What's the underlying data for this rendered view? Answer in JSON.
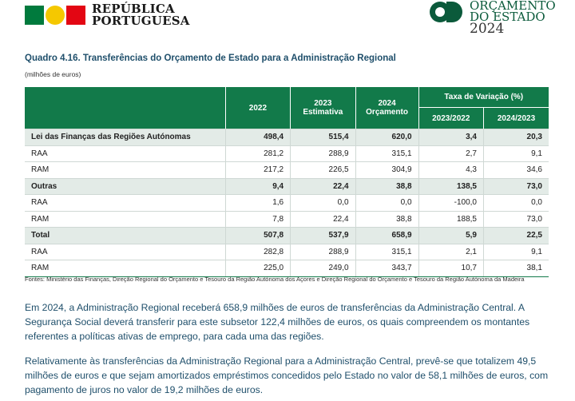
{
  "header": {
    "republica_line1": "REPÚBLICA",
    "republica_line2": "PORTUGUESA",
    "orcamento_line1": "ORÇAMENTO",
    "orcamento_line2": "DO ESTADO",
    "orcamento_year": "2024"
  },
  "table_title": "Quadro 4.16. Transferências do Orçamento de Estado para a Administração Regional",
  "units": "(milhões de euros)",
  "columns": {
    "c2022": "2022",
    "c2023": "2023",
    "c2023_sub": "Estimativa",
    "c2024": "2024",
    "c2024_sub": "Orçamento",
    "taxa": "Taxa de Variação (%)",
    "taxa_a": "2023/2022",
    "taxa_b": "2024/2023"
  },
  "rows": [
    {
      "label": "Lei das Finanças das Regiões Autónomas",
      "v2022": "498,4",
      "v2023": "515,4",
      "v2024": "620,0",
      "t1": "3,4",
      "t2": "20,3",
      "bold": true
    },
    {
      "label": "RAA",
      "v2022": "281,2",
      "v2023": "288,9",
      "v2024": "315,1",
      "t1": "2,7",
      "t2": "9,1",
      "bold": false
    },
    {
      "label": "RAM",
      "v2022": "217,2",
      "v2023": "226,5",
      "v2024": "304,9",
      "t1": "4,3",
      "t2": "34,6",
      "bold": false
    },
    {
      "label": "Outras",
      "v2022": "9,4",
      "v2023": "22,4",
      "v2024": "38,8",
      "t1": "138,5",
      "t2": "73,0",
      "bold": true
    },
    {
      "label": "RAA",
      "v2022": "1,6",
      "v2023": "0,0",
      "v2024": "0,0",
      "t1": "-100,0",
      "t2": "0,0",
      "bold": false
    },
    {
      "label": "RAM",
      "v2022": "7,8",
      "v2023": "22,4",
      "v2024": "38,8",
      "t1": "188,5",
      "t2": "73,0",
      "bold": false
    },
    {
      "label": "Total",
      "v2022": "507,8",
      "v2023": "537,9",
      "v2024": "658,9",
      "t1": "5,9",
      "t2": "22,5",
      "bold": true
    },
    {
      "label": "RAA",
      "v2022": "282,8",
      "v2023": "288,9",
      "v2024": "315,1",
      "t1": "2,1",
      "t2": "9,1",
      "bold": false
    },
    {
      "label": "RAM",
      "v2022": "225,0",
      "v2023": "249,0",
      "v2024": "343,7",
      "t1": "10,7",
      "t2": "38,1",
      "bold": false
    }
  ],
  "sources": "Fontes: Ministério das Finanças, Direção Regional do Orçamento e Tesouro da Região Autónoma dos Açores e Direção Regional do Orçamento e Tesouro da Região Autónoma da Madeira",
  "paragraph1": "Em 2024, a Administração Regional receberá 658,9 milhões de euros de transferências da Administração Central. A Segurança Social deverá transferir para este subsetor 122,4 milhões de euros, os quais compreendem os montantes referentes a políticas ativas de emprego, para cada uma das regiões.",
  "paragraph2": "Relativamente às transferências da Administração Regional para a Administração Central, prevê-se que totalizem 49,5 milhões de euros e que sejam amortizados empréstimos concedidos pelo Estado no valor de 58,1 milhões de euros, com pagamento de juros no valor de 19,2 milhões de euros."
}
